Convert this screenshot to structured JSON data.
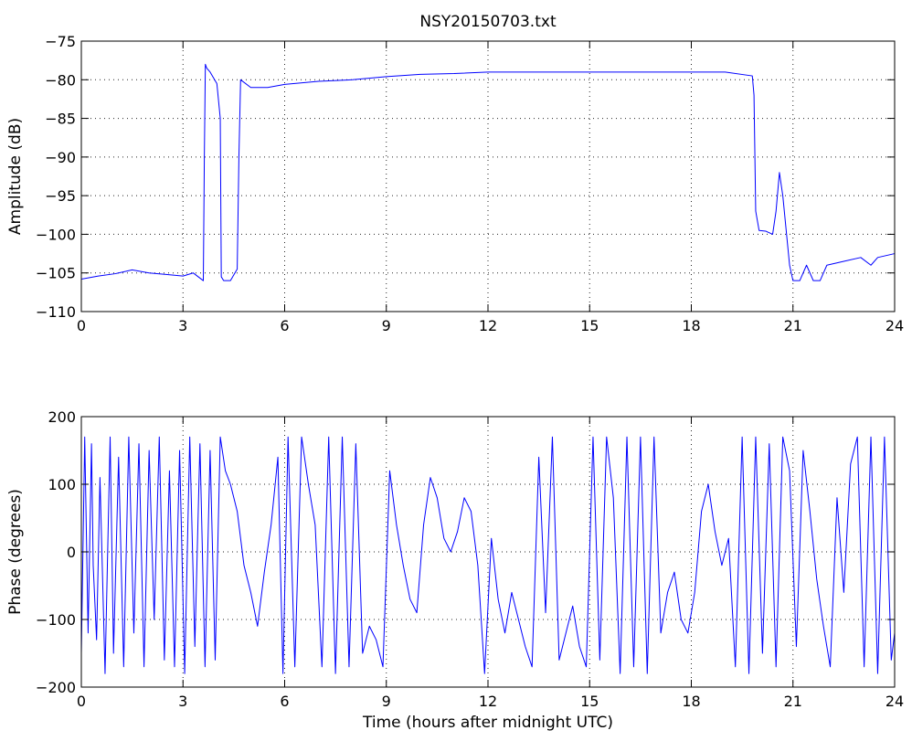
{
  "chart_data": [
    {
      "type": "line",
      "title": "NSY20150703.txt",
      "xlabel": "",
      "ylabel": "Amplitude (dB)",
      "xlim": [
        0,
        24
      ],
      "ylim": [
        -110,
        -75
      ],
      "xticks": [
        0,
        3,
        6,
        9,
        12,
        15,
        18,
        21,
        24
      ],
      "xtick_labels": [
        "0",
        "3",
        "6",
        "9",
        "12",
        "15",
        "18",
        "21",
        "24"
      ],
      "yticks": [
        -75,
        -80,
        -85,
        -90,
        -95,
        -100,
        -105,
        -110
      ],
      "ytick_labels": [
        "−75",
        "−80",
        "−85",
        "−90",
        "−95",
        "−100",
        "−105",
        "−110"
      ],
      "grid": true,
      "color": "#0000ff",
      "series": [
        {
          "x": [
            0,
            0.5,
            1.0,
            1.5,
            2.0,
            2.5,
            3.0,
            3.3,
            3.6,
            3.63,
            3.66,
            3.7,
            3.8,
            4.0,
            4.1,
            4.13,
            4.2,
            4.4,
            4.6,
            4.65,
            4.7,
            5.0,
            5.5,
            6.0,
            7.0,
            8.0,
            9.0,
            10.0,
            11.0,
            12.0,
            13.0,
            14.0,
            15.0,
            16.0,
            17.0,
            18.0,
            19.0,
            19.8,
            19.85,
            19.9,
            20.0,
            20.2,
            20.4,
            20.5,
            20.6,
            20.7,
            20.9,
            21.0,
            21.2,
            21.4,
            21.6,
            21.8,
            22.0,
            22.5,
            23.0,
            23.3,
            23.5,
            24.0
          ],
          "y": [
            -105.8,
            -105.4,
            -105.1,
            -104.6,
            -105.0,
            -105.2,
            -105.4,
            -105.0,
            -106.0,
            -90.0,
            -78.0,
            -78.5,
            -79.0,
            -80.5,
            -85.0,
            -105.5,
            -106.0,
            -106.0,
            -104.5,
            -90.0,
            -80.0,
            -81.0,
            -81.0,
            -80.6,
            -80.2,
            -80.0,
            -79.6,
            -79.3,
            -79.2,
            -79.0,
            -79.0,
            -79.0,
            -79.0,
            -79.0,
            -79.0,
            -79.0,
            -79.0,
            -79.5,
            -82.0,
            -97.0,
            -99.5,
            -99.6,
            -100.0,
            -97.0,
            -92.0,
            -95.0,
            -104.0,
            -106.0,
            -106.0,
            -104.0,
            -106.0,
            -106.0,
            -104.0,
            -103.5,
            -103.0,
            -104.0,
            -103.0,
            -102.5
          ]
        }
      ]
    },
    {
      "type": "line",
      "title": "",
      "xlabel": "Time (hours after midnight UTC)",
      "ylabel": "Phase (degrees)",
      "xlim": [
        0,
        24
      ],
      "ylim": [
        -200,
        200
      ],
      "xticks": [
        0,
        3,
        6,
        9,
        12,
        15,
        18,
        21,
        24
      ],
      "xtick_labels": [
        "0",
        "3",
        "6",
        "9",
        "12",
        "15",
        "18",
        "21",
        "24"
      ],
      "yticks": [
        200,
        100,
        0,
        -100,
        -200
      ],
      "ytick_labels": [
        "200",
        "100",
        "0",
        "−100",
        "−200"
      ],
      "grid": true,
      "color": "#0000ff",
      "series": [
        {
          "x": [
            0,
            0.1,
            0.2,
            0.3,
            0.35,
            0.45,
            0.55,
            0.7,
            0.85,
            0.95,
            1.1,
            1.25,
            1.4,
            1.55,
            1.7,
            1.85,
            2.0,
            2.15,
            2.3,
            2.45,
            2.6,
            2.75,
            2.9,
            3.05,
            3.2,
            3.35,
            3.5,
            3.65,
            3.8,
            3.95,
            4.1,
            4.25,
            4.4,
            4.6,
            4.8,
            5.0,
            5.2,
            5.4,
            5.6,
            5.8,
            5.95,
            6.1,
            6.3,
            6.5,
            6.7,
            6.9,
            7.1,
            7.3,
            7.5,
            7.7,
            7.9,
            8.1,
            8.3,
            8.5,
            8.7,
            8.9,
            9.1,
            9.3,
            9.5,
            9.7,
            9.9,
            10.1,
            10.3,
            10.5,
            10.7,
            10.9,
            11.1,
            11.3,
            11.5,
            11.7,
            11.9,
            12.1,
            12.3,
            12.5,
            12.7,
            12.9,
            13.1,
            13.3,
            13.5,
            13.7,
            13.9,
            14.1,
            14.3,
            14.5,
            14.7,
            14.9,
            15.1,
            15.3,
            15.5,
            15.7,
            15.9,
            16.1,
            16.3,
            16.5,
            16.7,
            16.9,
            17.1,
            17.3,
            17.5,
            17.7,
            17.9,
            18.1,
            18.3,
            18.5,
            18.7,
            18.9,
            19.1,
            19.3,
            19.5,
            19.7,
            19.9,
            20.1,
            20.3,
            20.5,
            20.7,
            20.9,
            21.1,
            21.3,
            21.5,
            21.7,
            21.9,
            22.1,
            22.3,
            22.5,
            22.7,
            22.9,
            23.1,
            23.3,
            23.5,
            23.7,
            23.9,
            24.0
          ],
          "y": [
            -150,
            170,
            -120,
            160,
            -20,
            -130,
            110,
            -180,
            170,
            -150,
            140,
            -170,
            170,
            -120,
            160,
            -170,
            150,
            -100,
            170,
            -160,
            120,
            -170,
            150,
            -180,
            170,
            -140,
            160,
            -170,
            150,
            -160,
            170,
            120,
            100,
            60,
            -20,
            -60,
            -110,
            -30,
            40,
            140,
            -180,
            170,
            -170,
            170,
            100,
            40,
            -170,
            170,
            -180,
            170,
            -170,
            160,
            -150,
            -110,
            -130,
            -170,
            120,
            40,
            -20,
            -70,
            -90,
            40,
            110,
            80,
            20,
            0,
            30,
            80,
            60,
            -20,
            -180,
            20,
            -70,
            -120,
            -60,
            -100,
            -140,
            -170,
            140,
            -90,
            170,
            -160,
            -120,
            -80,
            -140,
            -170,
            170,
            -160,
            170,
            80,
            -180,
            170,
            -170,
            170,
            -180,
            170,
            -120,
            -60,
            -30,
            -100,
            -120,
            -60,
            60,
            100,
            30,
            -20,
            20,
            -170,
            170,
            -180,
            170,
            -150,
            160,
            -170,
            170,
            120,
            -140,
            150,
            60,
            -40,
            -110,
            -170,
            80,
            -60,
            130,
            170,
            -170,
            170,
            -180,
            170,
            -160,
            -120
          ]
        }
      ]
    }
  ]
}
